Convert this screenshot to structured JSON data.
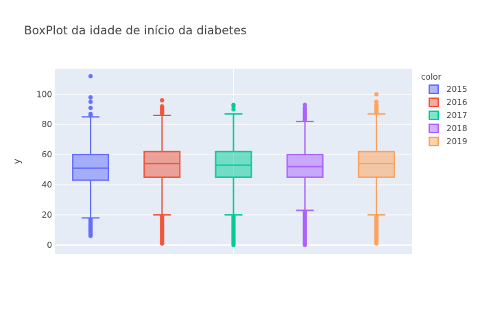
{
  "chart_data": {
    "type": "box",
    "title": "BoxPlot da idade de início da diabetes",
    "ylabel": "y",
    "xlabel": "",
    "ylim": [
      -6,
      117
    ],
    "yticks": [
      0,
      20,
      40,
      60,
      80,
      100
    ],
    "grid": true,
    "legend": {
      "title": "color",
      "placement": "right"
    },
    "series": [
      {
        "name": "2015",
        "color": "#636efa",
        "q1": 43,
        "median": 51,
        "q3": 60,
        "lower_whisker": 18,
        "upper_whisker": 85,
        "outliers": [
          6,
          7,
          8,
          9,
          10,
          11,
          12,
          13,
          14,
          15,
          16,
          17,
          86,
          87,
          91,
          95,
          98,
          112
        ]
      },
      {
        "name": "2016",
        "color": "#ef553b",
        "q1": 45,
        "median": 54,
        "q3": 62,
        "lower_whisker": 20,
        "upper_whisker": 86,
        "outliers": [
          1,
          2,
          3,
          4,
          5,
          6,
          7,
          8,
          9,
          10,
          11,
          12,
          13,
          14,
          15,
          16,
          17,
          18,
          19,
          87,
          88,
          89,
          90,
          91,
          92,
          96
        ]
      },
      {
        "name": "2017",
        "color": "#00cc96",
        "q1": 45,
        "median": 53,
        "q3": 62,
        "lower_whisker": 20,
        "upper_whisker": 87,
        "outliers": [
          0,
          1,
          2,
          3,
          4,
          5,
          6,
          7,
          8,
          9,
          10,
          11,
          12,
          13,
          14,
          15,
          16,
          17,
          18,
          19,
          90,
          92,
          93
        ]
      },
      {
        "name": "2018",
        "color": "#ab63fa",
        "q1": 45,
        "median": 52,
        "q3": 60,
        "lower_whisker": 23,
        "upper_whisker": 82,
        "outliers": [
          0,
          1,
          2,
          3,
          4,
          5,
          6,
          7,
          8,
          9,
          10,
          11,
          12,
          13,
          14,
          15,
          16,
          17,
          18,
          19,
          20,
          21,
          22,
          83,
          84,
          85,
          86,
          87,
          88,
          89,
          90,
          91,
          93
        ]
      },
      {
        "name": "2019",
        "color": "#ffa15a",
        "q1": 45,
        "median": 54,
        "q3": 62,
        "lower_whisker": 20,
        "upper_whisker": 87,
        "outliers": [
          1,
          2,
          3,
          4,
          5,
          6,
          7,
          8,
          9,
          10,
          11,
          12,
          13,
          14,
          15,
          16,
          17,
          18,
          19,
          88,
          89,
          90,
          91,
          92,
          93,
          95,
          100
        ]
      }
    ]
  }
}
